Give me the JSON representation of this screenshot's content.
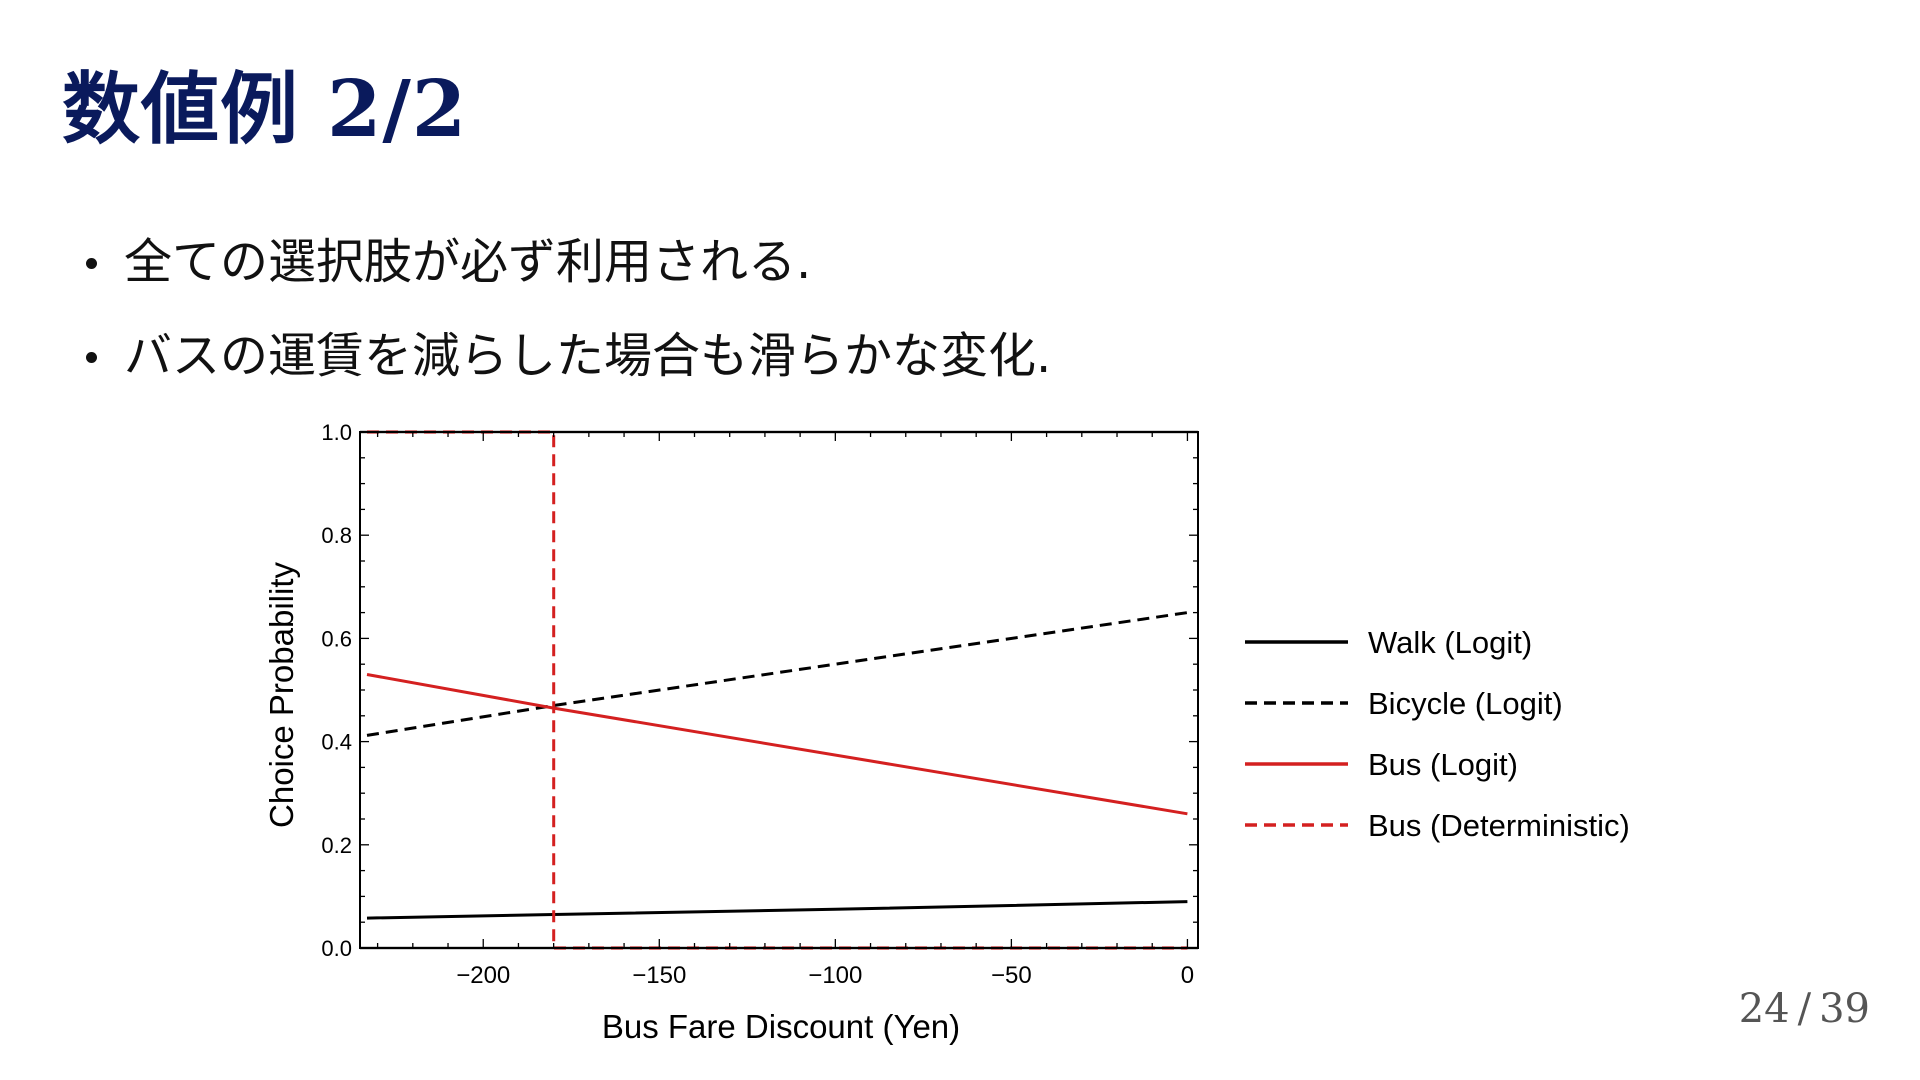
{
  "slide": {
    "title": "数値例 2/2",
    "bullets": [
      "全ての選択肢が必ず利用される.",
      "バスの運賃を減らした場合も滑らかな変化."
    ],
    "page_current": "24",
    "page_separator": "/",
    "page_total": "39",
    "colors": {
      "title": "#0a1a5c",
      "walk": "#000000",
      "bicycle": "#000000",
      "bus_logit": "#d42020",
      "bus_deterministic": "#d42020"
    }
  },
  "chart_data": {
    "type": "line",
    "title": "",
    "xlabel": "Bus Fare Discount (Yen)",
    "ylabel": "Choice Probability",
    "xlim": [
      -235,
      3
    ],
    "ylim": [
      0,
      1.0
    ],
    "xticks": [
      -200,
      -150,
      -100,
      -50,
      0
    ],
    "xtick_labels": [
      "−200",
      "−150",
      "−100",
      "−50",
      "0"
    ],
    "yticks": [
      0.0,
      0.2,
      0.4,
      0.6,
      0.8,
      1.0
    ],
    "ytick_labels": [
      "0.0",
      "0.2",
      "0.4",
      "0.6",
      "0.8",
      "1.0"
    ],
    "grid": false,
    "legend_position": "right",
    "series": [
      {
        "name": "Walk (Logit)",
        "style": "solid",
        "color": "#000000",
        "x": [
          -233,
          -180,
          -100,
          0
        ],
        "y": [
          0.058,
          0.065,
          0.075,
          0.09
        ]
      },
      {
        "name": "Bicycle (Logit)",
        "style": "dashed",
        "color": "#000000",
        "x": [
          -233,
          -180,
          0
        ],
        "y": [
          0.412,
          0.47,
          0.65
        ]
      },
      {
        "name": "Bus (Logit)",
        "style": "solid",
        "color": "#d42020",
        "x": [
          -233,
          -180,
          0
        ],
        "y": [
          0.53,
          0.465,
          0.26
        ]
      },
      {
        "name": "Bus (Deterministic)",
        "style": "dashed",
        "color": "#d42020",
        "x": [
          -233,
          -180,
          -180,
          0
        ],
        "y": [
          1.0,
          1.0,
          0.0,
          0.0
        ]
      }
    ]
  }
}
